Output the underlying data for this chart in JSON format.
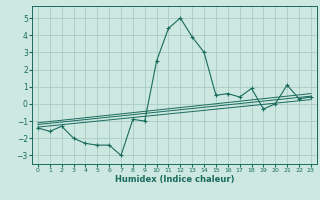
{
  "xlabel": "Humidex (Indice chaleur)",
  "xlim": [
    -0.5,
    23.5
  ],
  "ylim": [
    -3.5,
    5.7
  ],
  "yticks": [
    -3,
    -2,
    -1,
    0,
    1,
    2,
    3,
    4,
    5
  ],
  "xticks": [
    0,
    1,
    2,
    3,
    4,
    5,
    6,
    7,
    8,
    9,
    10,
    11,
    12,
    13,
    14,
    15,
    16,
    17,
    18,
    19,
    20,
    21,
    22,
    23
  ],
  "bg_color": "#cce8e0",
  "line_color": "#1a6b5e",
  "grid_color": "#aaccc4",
  "main_x": [
    0,
    1,
    2,
    3,
    4,
    5,
    6,
    7,
    8,
    9,
    10,
    11,
    12,
    13,
    14,
    15,
    16,
    17,
    18,
    19,
    20,
    21,
    22,
    23
  ],
  "main_y": [
    -1.4,
    -1.6,
    -1.3,
    -2.0,
    -2.3,
    -2.4,
    -2.4,
    -3.0,
    -0.9,
    -1.0,
    2.5,
    4.4,
    5.0,
    3.9,
    3.0,
    0.5,
    0.6,
    0.4,
    0.9,
    -0.3,
    0.0,
    1.1,
    0.3,
    0.4
  ],
  "trend_lines": [
    {
      "x": [
        0,
        23
      ],
      "y": [
        -1.35,
        0.25
      ]
    },
    {
      "x": [
        0,
        23
      ],
      "y": [
        -1.2,
        0.45
      ]
    },
    {
      "x": [
        0,
        23
      ],
      "y": [
        -1.1,
        0.6
      ]
    }
  ],
  "xlabel_fontsize": 6.0,
  "ytick_fontsize": 5.5,
  "xtick_fontsize": 4.5
}
